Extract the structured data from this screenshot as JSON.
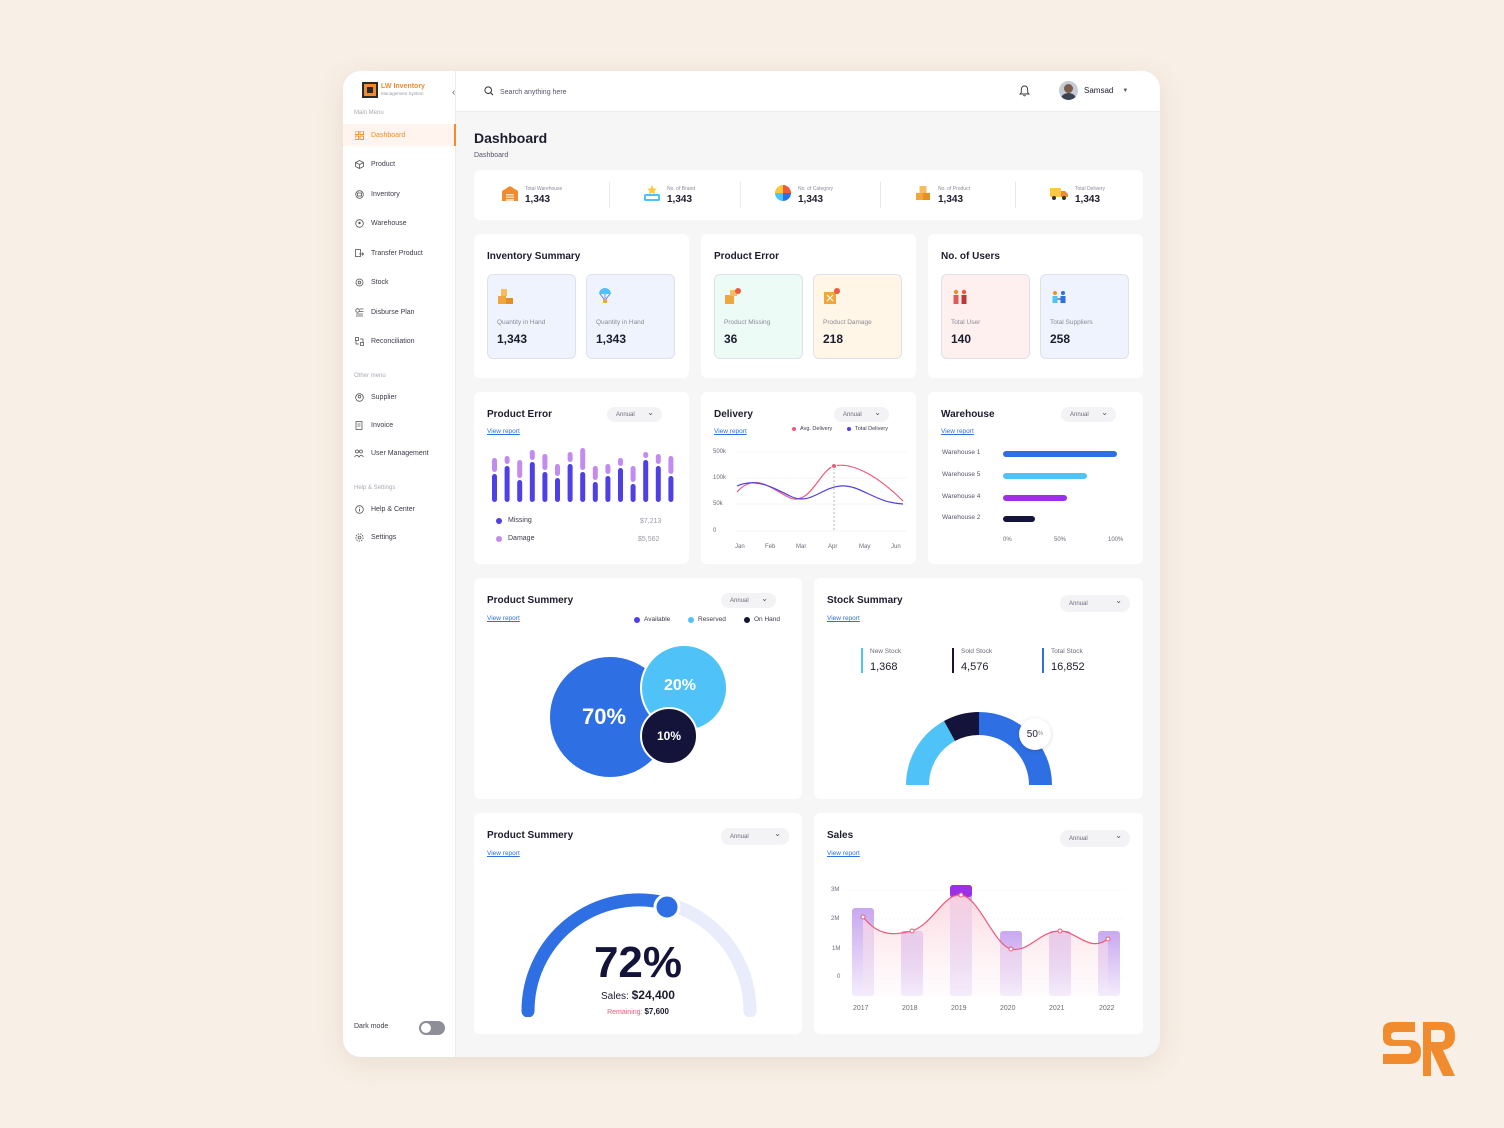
{
  "app": {
    "logo_title": "LW Inventory",
    "logo_subtitle": "Management System"
  },
  "sidebar": {
    "main_menu_label": "Main Menu",
    "main_items": [
      {
        "label": "Dashboard",
        "icon": "grid-icon"
      },
      {
        "label": "Product",
        "icon": "box-icon"
      },
      {
        "label": "Inventory",
        "icon": "inventory-icon"
      },
      {
        "label": "Warehouse",
        "icon": "location-icon"
      },
      {
        "label": "Transfer Product",
        "icon": "transfer-icon"
      },
      {
        "label": "Stock",
        "icon": "stock-icon"
      },
      {
        "label": "Disburse Plan",
        "icon": "disburse-icon"
      },
      {
        "label": "Reconciliation",
        "icon": "reconcile-icon"
      }
    ],
    "other_menu_label": "Other menu",
    "other_items": [
      {
        "label": "Supplier",
        "icon": "supplier-icon"
      },
      {
        "label": "Invoice",
        "icon": "invoice-icon"
      },
      {
        "label": "User Management",
        "icon": "users-icon"
      }
    ],
    "help_label": "Help & Settings",
    "help_items": [
      {
        "label": "Help & Center",
        "icon": "info-icon"
      },
      {
        "label": "Settings",
        "icon": "gear-icon"
      }
    ],
    "dark_mode_label": "Dark mode"
  },
  "topbar": {
    "search_placeholder": "Search anything here",
    "user_name": "Samsad"
  },
  "page": {
    "title": "Dashboard",
    "breadcrumb": "Dashboard"
  },
  "stats": [
    {
      "label": "Total Warehouse",
      "value": "1,343"
    },
    {
      "label": "No. of Brand",
      "value": "1,343"
    },
    {
      "label": "No. of Category",
      "value": "1,343"
    },
    {
      "label": "No. of Product",
      "value": "1,343"
    },
    {
      "label": "Total Delivery",
      "value": "1,343"
    }
  ],
  "inventory_summary": {
    "title": "Inventory Summary",
    "tiles": [
      {
        "label": "Quantity in Hand",
        "value": "1,343"
      },
      {
        "label": "Quantity in Hand",
        "value": "1,343"
      }
    ]
  },
  "product_error_summary": {
    "title": "Product Error",
    "tiles": [
      {
        "label": "Product Missing",
        "value": "36"
      },
      {
        "label": "Product Damage",
        "value": "218"
      }
    ]
  },
  "users_summary": {
    "title": "No. of Users",
    "tiles": [
      {
        "label": "Total User",
        "value": "140"
      },
      {
        "label": "Total Suppliers",
        "value": "258"
      }
    ]
  },
  "common": {
    "annual": "Annual",
    "view_report": "View report"
  },
  "product_error_chart": {
    "title": "Product Error",
    "legend": [
      {
        "label": "Missing",
        "value": "$7,213",
        "color": "#4f3fe6"
      },
      {
        "label": "Damage",
        "value": "$5,562",
        "color": "#c38bef"
      }
    ]
  },
  "delivery": {
    "title": "Delivery",
    "legend": [
      "Avg. Delivery",
      "Total Delivery"
    ],
    "y_ticks": [
      "500k",
      "100k",
      "50k",
      "0"
    ],
    "x_ticks": [
      "Jan",
      "Feb",
      "Mar",
      "Apr",
      "May",
      "Jun"
    ]
  },
  "warehouse": {
    "title": "Warehouse",
    "bars": [
      {
        "label": "Warehouse 1",
        "pct": 100,
        "color": "#2f6fe4"
      },
      {
        "label": "Warehouse 5",
        "pct": 74,
        "color": "#4fc3f7"
      },
      {
        "label": "Warehouse 4",
        "pct": 56,
        "color": "#9b30e8"
      },
      {
        "label": "Warehouse 2",
        "pct": 28,
        "color": "#14143a"
      }
    ],
    "x_ticks": [
      "0%",
      "50%",
      "100%"
    ]
  },
  "product_summary_1": {
    "title": "Product Summery",
    "legend": [
      {
        "label": "Available",
        "color": "#4f3fe6"
      },
      {
        "label": "Reserved",
        "color": "#4fc3f7"
      },
      {
        "label": "On Hand",
        "color": "#14143a"
      }
    ],
    "values": [
      "70%",
      "20%",
      "10%"
    ]
  },
  "stock_summary": {
    "title": "Stock Summary",
    "items": [
      {
        "label": "New Stock",
        "value": "1,368"
      },
      {
        "label": "Sold Stock",
        "value": "4,576"
      },
      {
        "label": "Total Stock",
        "value": "16,852"
      }
    ],
    "gauge_value": "50",
    "gauge_unit": "%"
  },
  "product_summary_2": {
    "title": "Product Summery",
    "percent": "72%",
    "sales_label": "Sales:",
    "sales_value": "$24,400",
    "remaining_label": "Remaining:",
    "remaining_value": "$7,600"
  },
  "sales": {
    "title": "Sales",
    "y_ticks": [
      "3M",
      "2M",
      "1M",
      "0"
    ],
    "x_ticks": [
      "2017",
      "2018",
      "2019",
      "2020",
      "2021",
      "2022"
    ]
  }
}
